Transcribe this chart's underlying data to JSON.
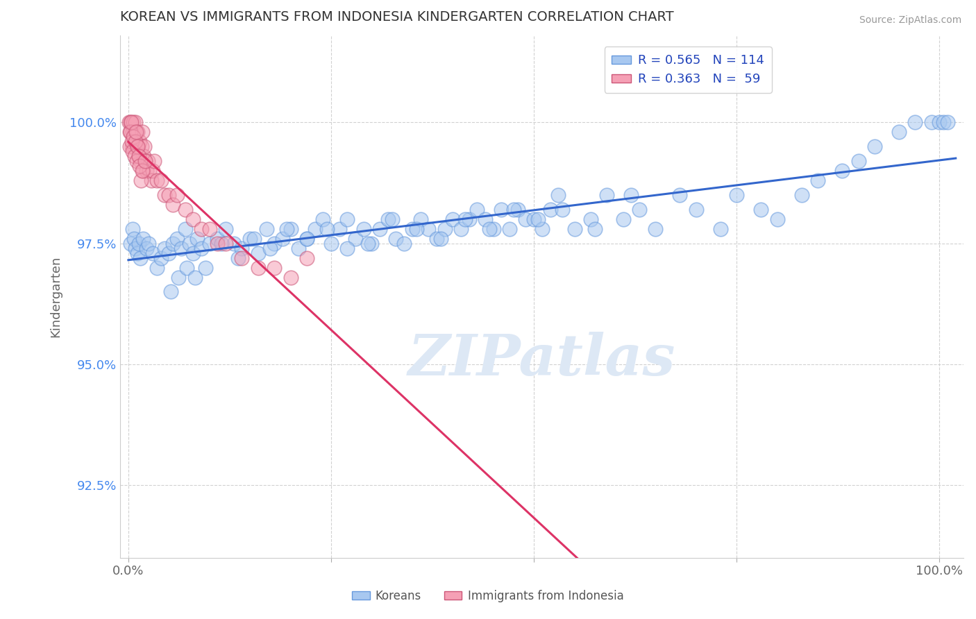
{
  "title": "KOREAN VS IMMIGRANTS FROM INDONESIA KINDERGARTEN CORRELATION CHART",
  "source": "Source: ZipAtlas.com",
  "xlabel": "",
  "ylabel": "Kindergarten",
  "xlim": [
    -1.0,
    103.0
  ],
  "ylim": [
    91.0,
    101.8
  ],
  "yticks": [
    92.5,
    95.0,
    97.5,
    100.0
  ],
  "ytick_labels": [
    "92.5%",
    "95.0%",
    "97.5%",
    "100.0%"
  ],
  "xticks": [
    0.0,
    25.0,
    50.0,
    75.0,
    100.0
  ],
  "xtick_labels": [
    "0.0%",
    "",
    "",
    "",
    "100.0%"
  ],
  "legend_R_blue": "R = 0.565",
  "legend_N_blue": "N = 114",
  "legend_R_pink": "R = 0.363",
  "legend_N_pink": "N =  59",
  "legend_label_blue": "Koreans",
  "legend_label_pink": "Immigrants from Indonesia",
  "blue_color": "#a8c8f0",
  "pink_color": "#f5a0b5",
  "trend_blue_color": "#3366cc",
  "trend_pink_color": "#dd3366",
  "watermark_text": "ZIPatlas",
  "blue_scatter_x": [
    0.3,
    0.5,
    0.7,
    0.9,
    1.1,
    1.3,
    1.5,
    1.8,
    2.2,
    2.5,
    3.0,
    3.5,
    4.0,
    4.5,
    5.0,
    5.5,
    6.0,
    6.5,
    7.0,
    7.5,
    8.0,
    8.5,
    9.0,
    10.0,
    11.0,
    12.0,
    13.0,
    14.0,
    15.0,
    16.0,
    17.0,
    18.0,
    19.0,
    20.0,
    21.0,
    22.0,
    23.0,
    24.0,
    25.0,
    26.0,
    27.0,
    28.0,
    29.0,
    30.0,
    31.0,
    32.0,
    33.0,
    34.0,
    35.0,
    36.0,
    37.0,
    38.0,
    39.0,
    40.0,
    41.0,
    42.0,
    43.0,
    44.0,
    45.0,
    46.0,
    47.0,
    48.0,
    49.0,
    50.0,
    51.0,
    52.0,
    53.0,
    55.0,
    57.0,
    59.0,
    61.0,
    63.0,
    65.0,
    68.0,
    70.0,
    73.0,
    75.0,
    78.0,
    80.0,
    83.0,
    85.0,
    88.0,
    90.0,
    92.0,
    95.0,
    97.0,
    99.0,
    100.0,
    100.5,
    101.0,
    5.2,
    6.2,
    7.2,
    8.2,
    9.5,
    11.5,
    13.5,
    15.5,
    17.5,
    19.5,
    22.0,
    24.5,
    27.0,
    29.5,
    32.5,
    35.5,
    38.5,
    41.5,
    44.5,
    47.5,
    50.5,
    53.5,
    57.5,
    62.0
  ],
  "blue_scatter_y": [
    97.5,
    97.8,
    97.6,
    97.4,
    97.3,
    97.5,
    97.2,
    97.6,
    97.4,
    97.5,
    97.3,
    97.0,
    97.2,
    97.4,
    97.3,
    97.5,
    97.6,
    97.4,
    97.8,
    97.5,
    97.3,
    97.6,
    97.4,
    97.5,
    97.6,
    97.8,
    97.5,
    97.4,
    97.6,
    97.3,
    97.8,
    97.5,
    97.6,
    97.8,
    97.4,
    97.6,
    97.8,
    98.0,
    97.5,
    97.8,
    98.0,
    97.6,
    97.8,
    97.5,
    97.8,
    98.0,
    97.6,
    97.5,
    97.8,
    98.0,
    97.8,
    97.6,
    97.8,
    98.0,
    97.8,
    98.0,
    98.2,
    98.0,
    97.8,
    98.2,
    97.8,
    98.2,
    98.0,
    98.0,
    97.8,
    98.2,
    98.5,
    97.8,
    98.0,
    98.5,
    98.0,
    98.2,
    97.8,
    98.5,
    98.2,
    97.8,
    98.5,
    98.2,
    98.0,
    98.5,
    98.8,
    99.0,
    99.2,
    99.5,
    99.8,
    100.0,
    100.0,
    100.0,
    100.0,
    100.0,
    96.5,
    96.8,
    97.0,
    96.8,
    97.0,
    97.5,
    97.2,
    97.6,
    97.4,
    97.8,
    97.6,
    97.8,
    97.4,
    97.5,
    98.0,
    97.8,
    97.6,
    98.0,
    97.8,
    98.2,
    98.0,
    98.2,
    97.8,
    98.5
  ],
  "pink_scatter_x": [
    0.1,
    0.2,
    0.3,
    0.4,
    0.5,
    0.6,
    0.7,
    0.8,
    0.9,
    1.0,
    1.1,
    1.2,
    1.3,
    1.4,
    1.5,
    1.6,
    1.7,
    1.8,
    1.9,
    2.0,
    2.2,
    2.4,
    2.6,
    2.8,
    3.0,
    3.2,
    3.5,
    4.0,
    4.5,
    5.0,
    5.5,
    6.0,
    7.0,
    8.0,
    9.0,
    10.0,
    11.0,
    12.0,
    14.0,
    16.0,
    18.0,
    20.0,
    22.0,
    0.15,
    0.25,
    0.35,
    0.45,
    0.55,
    0.65,
    0.75,
    0.85,
    0.95,
    1.05,
    1.15,
    1.25,
    1.35,
    1.55,
    1.75,
    2.1
  ],
  "pink_scatter_y": [
    100.0,
    99.8,
    100.0,
    99.5,
    99.8,
    100.0,
    99.5,
    99.8,
    100.0,
    99.5,
    99.8,
    99.5,
    99.3,
    99.6,
    99.2,
    99.5,
    99.8,
    99.0,
    99.3,
    99.5,
    99.0,
    99.2,
    99.0,
    98.8,
    99.0,
    99.2,
    98.8,
    98.8,
    98.5,
    98.5,
    98.3,
    98.5,
    98.2,
    98.0,
    97.8,
    97.8,
    97.5,
    97.5,
    97.2,
    97.0,
    97.0,
    96.8,
    97.2,
    99.5,
    99.8,
    100.0,
    99.6,
    99.4,
    99.7,
    99.3,
    99.6,
    99.8,
    99.2,
    99.5,
    99.3,
    99.1,
    98.8,
    99.0,
    99.2
  ],
  "background_color": "#ffffff",
  "grid_color": "#cccccc",
  "title_color": "#333333",
  "axis_label_color": "#666666",
  "ytick_color": "#4488ee",
  "xtick_color": "#666666",
  "watermark_color": "#dde8f5",
  "legend_text_color": "#2244bb",
  "legend_border_color": "#cccccc"
}
